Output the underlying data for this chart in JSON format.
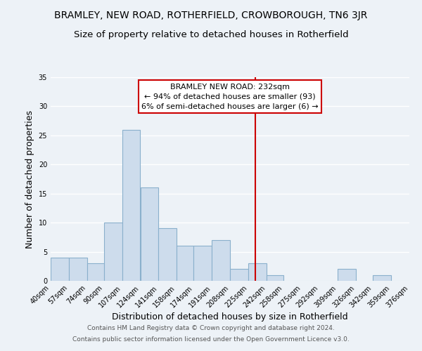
{
  "title": "BRAMLEY, NEW ROAD, ROTHERFIELD, CROWBOROUGH, TN6 3JR",
  "subtitle": "Size of property relative to detached houses in Rotherfield",
  "xlabel": "Distribution of detached houses by size in Rotherfield",
  "ylabel": "Number of detached properties",
  "bar_color": "#cddcec",
  "bar_edge_color": "#8ab0cc",
  "background_color": "#edf2f7",
  "grid_color": "#ffffff",
  "bins": [
    40,
    57,
    74,
    90,
    107,
    124,
    141,
    158,
    174,
    191,
    208,
    225,
    242,
    258,
    275,
    292,
    309,
    326,
    342,
    359,
    376
  ],
  "counts": [
    4,
    4,
    3,
    10,
    26,
    16,
    9,
    6,
    6,
    7,
    2,
    3,
    1,
    0,
    0,
    0,
    2,
    0,
    1,
    0
  ],
  "tick_labels": [
    "40sqm",
    "57sqm",
    "74sqm",
    "90sqm",
    "107sqm",
    "124sqm",
    "141sqm",
    "158sqm",
    "174sqm",
    "191sqm",
    "208sqm",
    "225sqm",
    "242sqm",
    "258sqm",
    "275sqm",
    "292sqm",
    "309sqm",
    "326sqm",
    "342sqm",
    "359sqm",
    "376sqm"
  ],
  "property_line_x": 232,
  "property_line_color": "#cc0000",
  "annotation_title": "BRAMLEY NEW ROAD: 232sqm",
  "annotation_line1": "← 94% of detached houses are smaller (93)",
  "annotation_line2": "6% of semi-detached houses are larger (6) →",
  "annotation_box_color": "#ffffff",
  "annotation_box_edge": "#cc0000",
  "ylim": [
    0,
    35
  ],
  "yticks": [
    0,
    5,
    10,
    15,
    20,
    25,
    30,
    35
  ],
  "footer1": "Contains HM Land Registry data © Crown copyright and database right 2024.",
  "footer2": "Contains public sector information licensed under the Open Government Licence v3.0.",
  "title_fontsize": 10,
  "subtitle_fontsize": 9.5,
  "axis_label_fontsize": 9,
  "tick_fontsize": 7,
  "footer_fontsize": 6.5,
  "annotation_fontsize": 8
}
